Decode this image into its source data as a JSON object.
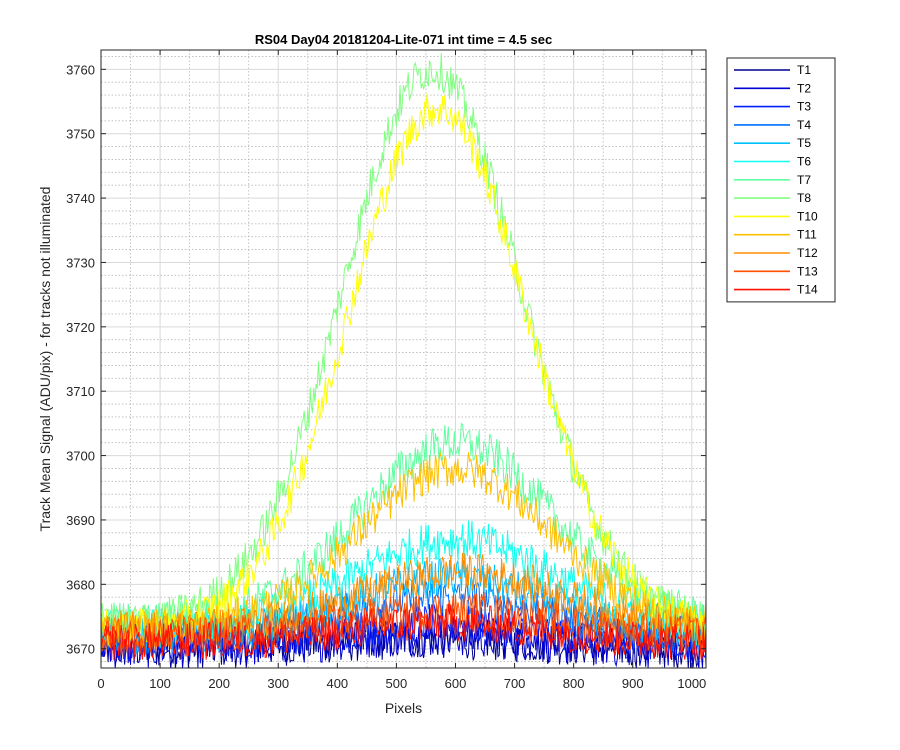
{
  "chart_data": {
    "type": "line",
    "title": "RS04 Day04 20181204-Lite-071 int time = 4.5 sec",
    "xlabel": "Pixels",
    "ylabel": "Track Mean Signal (ADU/pix) - for tracks not illuminated",
    "xlim": [
      0,
      1024
    ],
    "ylim": [
      3667,
      3763
    ],
    "x_ticks": [
      0,
      100,
      200,
      300,
      400,
      500,
      600,
      700,
      800,
      900,
      1000
    ],
    "y_ticks": [
      3670,
      3680,
      3690,
      3700,
      3710,
      3720,
      3730,
      3740,
      3750,
      3760
    ],
    "grid": true,
    "minor_grid": true,
    "legend_position": "outside-top-right",
    "series": [
      {
        "name": "T1",
        "color": "#00008f",
        "baseline": 3670,
        "peak": 3671.5,
        "center": 560,
        "width": 300,
        "noise": 3.2
      },
      {
        "name": "T2",
        "color": "#0000d6",
        "baseline": 3670,
        "peak": 3672,
        "center": 560,
        "width": 300,
        "noise": 3.2
      },
      {
        "name": "T3",
        "color": "#0020ff",
        "baseline": 3671,
        "peak": 3674,
        "center": 570,
        "width": 300,
        "noise": 3.0
      },
      {
        "name": "T4",
        "color": "#0070ff",
        "baseline": 3672,
        "peak": 3678,
        "center": 580,
        "width": 300,
        "noise": 3.0
      },
      {
        "name": "T5",
        "color": "#00bfff",
        "baseline": 3672,
        "peak": 3681,
        "center": 590,
        "width": 300,
        "noise": 3.0
      },
      {
        "name": "T6",
        "color": "#10ffef",
        "baseline": 3673,
        "peak": 3687,
        "center": 600,
        "width": 300,
        "noise": 3.2
      },
      {
        "name": "T7",
        "color": "#60ffa0",
        "baseline": 3674,
        "peak": 3702,
        "center": 600,
        "width": 290,
        "noise": 3.2
      },
      {
        "name": "T8",
        "color": "#80ff80",
        "baseline": 3674,
        "peak": 3760,
        "center": 560,
        "width": 270,
        "noise": 3.0
      },
      {
        "name": "T10",
        "color": "#ffff00",
        "baseline": 3673,
        "peak": 3754,
        "center": 570,
        "width": 270,
        "noise": 3.0
      },
      {
        "name": "T11",
        "color": "#ffbf00",
        "baseline": 3673,
        "peak": 3698,
        "center": 600,
        "width": 290,
        "noise": 3.0
      },
      {
        "name": "T12",
        "color": "#ff8f00",
        "baseline": 3673,
        "peak": 3682,
        "center": 610,
        "width": 300,
        "noise": 3.0
      },
      {
        "name": "T13",
        "color": "#ff5000",
        "baseline": 3672,
        "peak": 3676,
        "center": 600,
        "width": 300,
        "noise": 3.0
      },
      {
        "name": "T14",
        "color": "#ff1000",
        "baseline": 3671,
        "peak": 3674,
        "center": 580,
        "width": 300,
        "noise": 3.0
      }
    ]
  }
}
